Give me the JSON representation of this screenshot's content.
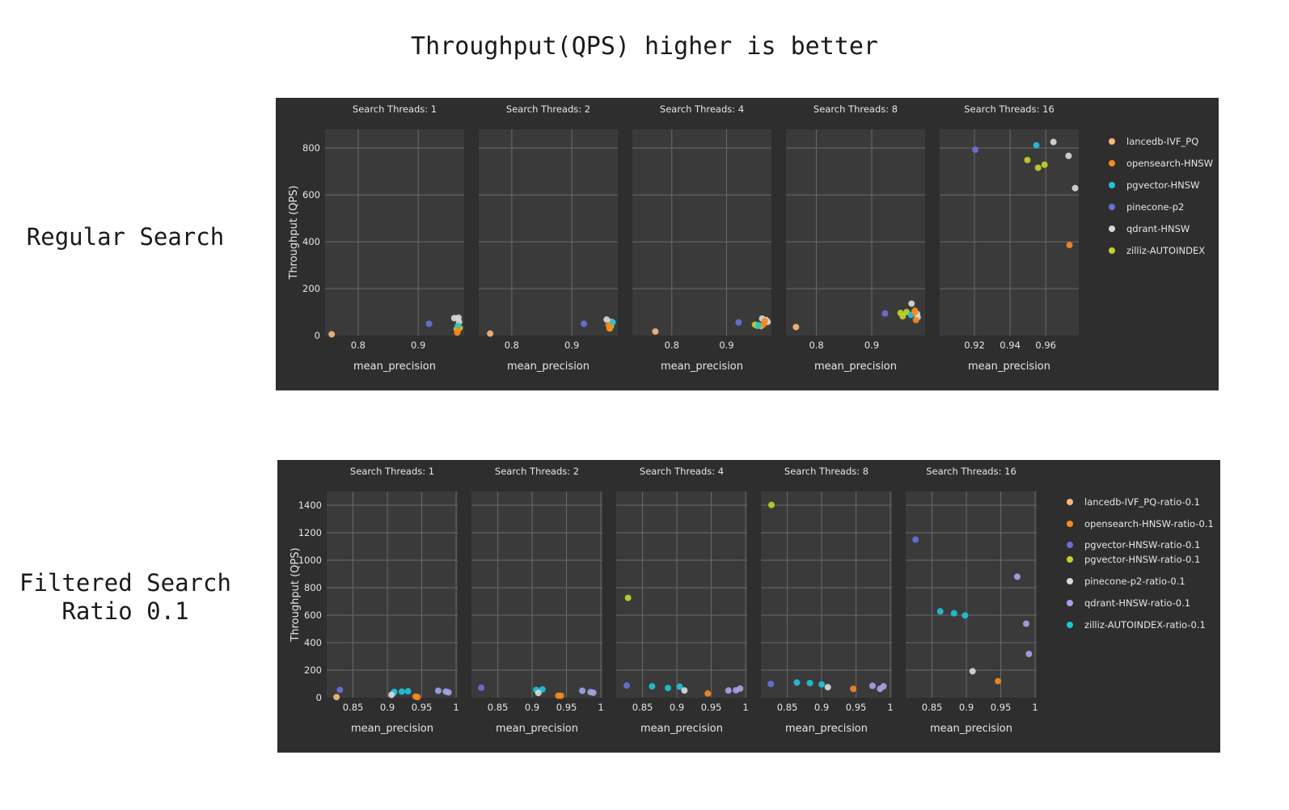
{
  "page": {
    "title": "Throughput(QPS) higher is better",
    "sections": [
      {
        "label_lines": [
          "Regular Search"
        ]
      },
      {
        "label_lines": [
          "Filtered Search",
          "Ratio 0.1"
        ]
      }
    ]
  },
  "chart_data": [
    {
      "type": "scatter",
      "title": "Regular Search",
      "ylabel": "Throughput (QPS)",
      "xlabel": "mean_precision",
      "ylim": [
        0,
        880
      ],
      "yticks": [
        0,
        200,
        400,
        600,
        800
      ],
      "grid": true,
      "legend_position": "right",
      "series": [
        {
          "name": "lancedb-IVF_PQ",
          "color": "#f7b97a"
        },
        {
          "name": "opensearch-HNSW",
          "color": "#f58a1f"
        },
        {
          "name": "pgvector-HNSW",
          "color": "#22c3d6"
        },
        {
          "name": "pinecone-p2",
          "color": "#6c6fd8"
        },
        {
          "name": "qdrant-HNSW",
          "color": "#d9d9d9"
        },
        {
          "name": "zilliz-AUTOINDEX",
          "color": "#c3d12a"
        }
      ],
      "facets": [
        {
          "title": "Search Threads: 1",
          "xlim": [
            0.745,
            0.9765
          ],
          "xticks": [
            0.8,
            0.9
          ],
          "points": [
            {
              "s": 0,
              "x": 0.756,
              "y": 5
            },
            {
              "s": 3,
              "x": 0.918,
              "y": 50
            },
            {
              "s": 4,
              "x": 0.96,
              "y": 74
            },
            {
              "s": 4,
              "x": 0.967,
              "y": 76
            },
            {
              "s": 4,
              "x": 0.968,
              "y": 58
            },
            {
              "s": 5,
              "x": 0.966,
              "y": 38
            },
            {
              "s": 5,
              "x": 0.969,
              "y": 32
            },
            {
              "s": 5,
              "x": 0.964,
              "y": 27
            },
            {
              "s": 2,
              "x": 0.966,
              "y": 40
            },
            {
              "s": 1,
              "x": 0.966,
              "y": 22
            },
            {
              "s": 1,
              "x": 0.965,
              "y": 12
            }
          ]
        },
        {
          "title": "Search Threads: 2",
          "xlim": [
            0.745,
            0.9765
          ],
          "xticks": [
            0.8,
            0.9
          ],
          "points": [
            {
              "s": 0,
              "x": 0.764,
              "y": 8
            },
            {
              "s": 3,
              "x": 0.92,
              "y": 50
            },
            {
              "s": 4,
              "x": 0.958,
              "y": 68
            },
            {
              "s": 4,
              "x": 0.966,
              "y": 58
            },
            {
              "s": 5,
              "x": 0.965,
              "y": 40
            },
            {
              "s": 5,
              "x": 0.963,
              "y": 30
            },
            {
              "s": 2,
              "x": 0.968,
              "y": 56
            },
            {
              "s": 1,
              "x": 0.961,
              "y": 44
            },
            {
              "s": 1,
              "x": 0.963,
              "y": 32
            }
          ]
        },
        {
          "title": "Search Threads: 4",
          "xlim": [
            0.728,
            0.982
          ],
          "xticks": [
            0.8,
            0.9
          ],
          "points": [
            {
              "s": 0,
              "x": 0.77,
              "y": 17
            },
            {
              "s": 3,
              "x": 0.922,
              "y": 56
            },
            {
              "s": 4,
              "x": 0.965,
              "y": 72
            },
            {
              "s": 4,
              "x": 0.972,
              "y": 66
            },
            {
              "s": 4,
              "x": 0.975,
              "y": 58
            },
            {
              "s": 5,
              "x": 0.952,
              "y": 46
            },
            {
              "s": 5,
              "x": 0.956,
              "y": 42
            },
            {
              "s": 5,
              "x": 0.963,
              "y": 40
            },
            {
              "s": 2,
              "x": 0.958,
              "y": 44
            },
            {
              "s": 1,
              "x": 0.968,
              "y": 48
            },
            {
              "s": 1,
              "x": 0.97,
              "y": 62
            }
          ]
        },
        {
          "title": "Search Threads: 8",
          "xlim": [
            0.745,
            0.9965
          ],
          "xticks": [
            0.8,
            0.9
          ],
          "points": [
            {
              "s": 0,
              "x": 0.763,
              "y": 36
            },
            {
              "s": 3,
              "x": 0.924,
              "y": 94
            },
            {
              "s": 4,
              "x": 0.972,
              "y": 136
            },
            {
              "s": 4,
              "x": 0.982,
              "y": 92
            },
            {
              "s": 4,
              "x": 0.983,
              "y": 78
            },
            {
              "s": 5,
              "x": 0.952,
              "y": 96
            },
            {
              "s": 5,
              "x": 0.956,
              "y": 82
            },
            {
              "s": 5,
              "x": 0.963,
              "y": 100
            },
            {
              "s": 2,
              "x": 0.971,
              "y": 88
            },
            {
              "s": 1,
              "x": 0.978,
              "y": 106
            },
            {
              "s": 1,
              "x": 0.978,
              "y": 98
            },
            {
              "s": 1,
              "x": 0.98,
              "y": 66
            }
          ]
        },
        {
          "title": "Search Threads: 16",
          "xlim": [
            0.9005,
            0.9785
          ],
          "xticks": [
            0.92,
            0.94,
            0.96,
            0.98
          ],
          "points": [
            {
              "s": 3,
              "x": 0.9205,
              "y": 793
            },
            {
              "s": 2,
              "x": 0.9547,
              "y": 812
            },
            {
              "s": 4,
              "x": 0.9643,
              "y": 826
            },
            {
              "s": 4,
              "x": 0.9728,
              "y": 767
            },
            {
              "s": 4,
              "x": 0.9765,
              "y": 629
            },
            {
              "s": 5,
              "x": 0.9497,
              "y": 749
            },
            {
              "s": 5,
              "x": 0.9557,
              "y": 716
            },
            {
              "s": 5,
              "x": 0.9593,
              "y": 729
            },
            {
              "s": 1,
              "x": 0.9733,
              "y": 386
            }
          ]
        }
      ]
    },
    {
      "type": "scatter",
      "title": "Filtered Search Ratio 0.1",
      "ylabel": "Throughput (QPS)",
      "xlabel": "mean_precision",
      "ylim": [
        0,
        1500
      ],
      "yticks": [
        0,
        200,
        400,
        600,
        800,
        1000,
        1200,
        1400
      ],
      "grid": true,
      "legend_position": "right",
      "series": [
        {
          "name": "lancedb-IVF_PQ-ratio-0.1",
          "color": "#f7b97a"
        },
        {
          "name": "opensearch-HNSW-ratio-0.1",
          "color": "#f58a1f"
        },
        {
          "name": "pgvector-HNSW-ratio-0.1",
          "color": "#6c6fd8"
        },
        {
          "name": "pgvector-HNSW-ratio-0.1",
          "color": "#c3d12a"
        },
        {
          "name": "pinecone-p2-ratio-0.1",
          "color": "#d9d9d9"
        },
        {
          "name": "qdrant-HNSW-ratio-0.1",
          "color": "#a5a3e6"
        },
        {
          "name": "zilliz-AUTOINDEX-ratio-0.1",
          "color": "#22c3d6"
        }
      ],
      "facets": [
        {
          "title": "Search Threads: 1",
          "xlim": [
            0.8117,
            1.0023
          ],
          "xticks": [
            0.85,
            0.9,
            0.95,
            1
          ],
          "xticklabels": [
            "0.85",
            "0.9",
            "0.95",
            "1"
          ],
          "points": [
            {
              "s": 0,
              "x": 0.826,
              "y": 4
            },
            {
              "s": 2,
              "x": 0.831,
              "y": 56
            },
            {
              "s": 6,
              "x": 0.909,
              "y": 34
            },
            {
              "s": 6,
              "x": 0.91,
              "y": 42
            },
            {
              "s": 6,
              "x": 0.921,
              "y": 44
            },
            {
              "s": 6,
              "x": 0.93,
              "y": 46
            },
            {
              "s": 4,
              "x": 0.906,
              "y": 20
            },
            {
              "s": 1,
              "x": 0.941,
              "y": 8
            },
            {
              "s": 1,
              "x": 0.944,
              "y": 4
            },
            {
              "s": 5,
              "x": 0.974,
              "y": 50
            },
            {
              "s": 5,
              "x": 0.985,
              "y": 44
            },
            {
              "s": 5,
              "x": 0.989,
              "y": 38
            }
          ]
        },
        {
          "title": "Search Threads: 2",
          "xlim": [
            0.8117,
            1.0023
          ],
          "xticks": [
            0.85,
            0.9,
            0.95,
            1
          ],
          "xticklabels": [
            "0.85",
            "0.9",
            "0.95",
            "1"
          ],
          "points": [
            {
              "s": 2,
              "x": 0.826,
              "y": 72
            },
            {
              "s": 6,
              "x": 0.906,
              "y": 56
            },
            {
              "s": 6,
              "x": 0.915,
              "y": 60
            },
            {
              "s": 4,
              "x": 0.909,
              "y": 34
            },
            {
              "s": 1,
              "x": 0.938,
              "y": 14
            },
            {
              "s": 1,
              "x": 0.942,
              "y": 14
            },
            {
              "s": 5,
              "x": 0.973,
              "y": 50
            },
            {
              "s": 5,
              "x": 0.985,
              "y": 40
            },
            {
              "s": 5,
              "x": 0.989,
              "y": 36
            }
          ]
        },
        {
          "title": "Search Threads: 4",
          "xlim": [
            0.8117,
            1.0023
          ],
          "xticks": [
            0.85,
            0.9,
            0.95,
            1
          ],
          "xticklabels": [
            "0.85",
            "0.9",
            "0.95",
            "1"
          ],
          "points": [
            {
              "s": 3,
              "x": 0.829,
              "y": 726
            },
            {
              "s": 2,
              "x": 0.827,
              "y": 88
            },
            {
              "s": 6,
              "x": 0.864,
              "y": 82
            },
            {
              "s": 6,
              "x": 0.887,
              "y": 70
            },
            {
              "s": 6,
              "x": 0.904,
              "y": 80
            },
            {
              "s": 4,
              "x": 0.911,
              "y": 52
            },
            {
              "s": 1,
              "x": 0.945,
              "y": 30
            },
            {
              "s": 5,
              "x": 0.975,
              "y": 52
            },
            {
              "s": 5,
              "x": 0.986,
              "y": 54
            },
            {
              "s": 5,
              "x": 0.992,
              "y": 66
            }
          ]
        },
        {
          "title": "Search Threads: 8",
          "xlim": [
            0.8117,
            1.0023
          ],
          "xticks": [
            0.85,
            0.9,
            0.95,
            1
          ],
          "xticklabels": [
            "0.85",
            "0.9",
            "0.95",
            "1"
          ],
          "points": [
            {
              "s": 3,
              "x": 0.827,
              "y": 1402
            },
            {
              "s": 2,
              "x": 0.826,
              "y": 100
            },
            {
              "s": 6,
              "x": 0.864,
              "y": 110
            },
            {
              "s": 6,
              "x": 0.883,
              "y": 106
            },
            {
              "s": 6,
              "x": 0.9,
              "y": 96
            },
            {
              "s": 4,
              "x": 0.909,
              "y": 76
            },
            {
              "s": 1,
              "x": 0.946,
              "y": 64
            },
            {
              "s": 5,
              "x": 0.974,
              "y": 86
            },
            {
              "s": 5,
              "x": 0.985,
              "y": 64
            },
            {
              "s": 5,
              "x": 0.99,
              "y": 82
            }
          ]
        },
        {
          "title": "Search Threads: 16",
          "xlim": [
            0.8117,
            1.0023
          ],
          "xticks": [
            0.85,
            0.9,
            0.95,
            1
          ],
          "xticklabels": [
            "0.85",
            "0.9",
            "0.95",
            "1"
          ],
          "points": [
            {
              "s": 2,
              "x": 0.826,
              "y": 1150
            },
            {
              "s": 6,
              "x": 0.862,
              "y": 628
            },
            {
              "s": 6,
              "x": 0.882,
              "y": 614
            },
            {
              "s": 6,
              "x": 0.898,
              "y": 598
            },
            {
              "s": 4,
              "x": 0.909,
              "y": 192
            },
            {
              "s": 1,
              "x": 0.946,
              "y": 120
            },
            {
              "s": 5,
              "x": 0.974,
              "y": 880
            },
            {
              "s": 5,
              "x": 0.987,
              "y": 538
            },
            {
              "s": 5,
              "x": 0.991,
              "y": 318
            }
          ]
        }
      ]
    }
  ]
}
